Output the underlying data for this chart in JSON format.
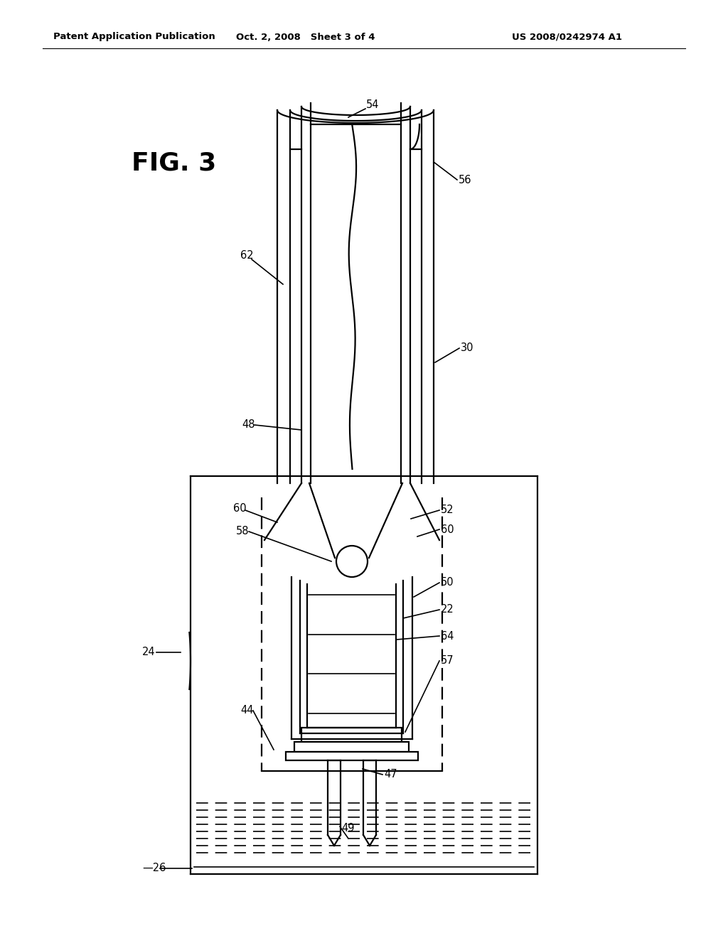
{
  "header_left": "Patent Application Publication",
  "header_center": "Oct. 2, 2008   Sheet 3 of 4",
  "header_right": "US 2008/0242974 A1",
  "fig_label": "FIG. 3",
  "bg_color": "#ffffff",
  "line_color": "#000000"
}
